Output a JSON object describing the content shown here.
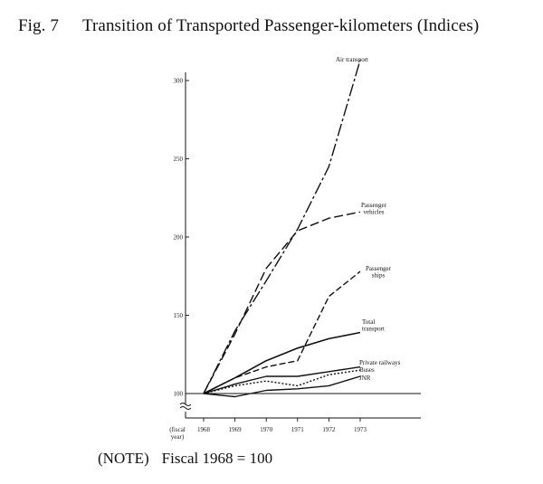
{
  "figure": {
    "number": "Fig. 7",
    "title": "Transition of Transported Passenger-kilometers (Indices)"
  },
  "note": {
    "label": "(NOTE)",
    "text": "Fiscal 1968 = 100"
  },
  "chart_data": {
    "type": "line",
    "x": [
      1968,
      1969,
      1970,
      1971,
      1972,
      1973
    ],
    "x_tick_labels": [
      "1968",
      "1969",
      "1970",
      "1971",
      "1972",
      "1973"
    ],
    "x_axis_label": [
      "(fiscal",
      "year)"
    ],
    "y_ticks": [
      100,
      150,
      200,
      250,
      300
    ],
    "ylim": [
      100,
      310
    ],
    "grid": false,
    "legend": "inline labels at line ends",
    "series": [
      {
        "id": "air",
        "label": [
          "Air transport"
        ],
        "values": [
          100,
          140,
          172,
          205,
          245,
          313
        ],
        "dash": "14 3 3 3"
      },
      {
        "id": "vehicles",
        "label": [
          "Passenger",
          "vehicles"
        ],
        "values": [
          100,
          138,
          180,
          204,
          212,
          216
        ],
        "dash": "10 4"
      },
      {
        "id": "ships",
        "label": [
          "Passenger",
          "ships"
        ],
        "values": [
          100,
          110,
          117,
          121,
          162,
          178
        ],
        "dash": "7 3"
      },
      {
        "id": "total",
        "label": [
          "Total",
          "transport"
        ],
        "values": [
          100,
          110,
          121,
          129,
          135,
          139
        ],
        "dash": ""
      },
      {
        "id": "private",
        "label": [
          "Private railways"
        ],
        "values": [
          100,
          106,
          111,
          111,
          114,
          117
        ],
        "dash": ""
      },
      {
        "id": "buses",
        "label": [
          "Buses"
        ],
        "values": [
          100,
          105,
          108,
          105,
          112,
          115
        ],
        "dash": "2 2"
      },
      {
        "id": "jnr",
        "label": [
          "JNR"
        ],
        "values": [
          100,
          98,
          102,
          103,
          105,
          111
        ],
        "dash": ""
      }
    ]
  }
}
